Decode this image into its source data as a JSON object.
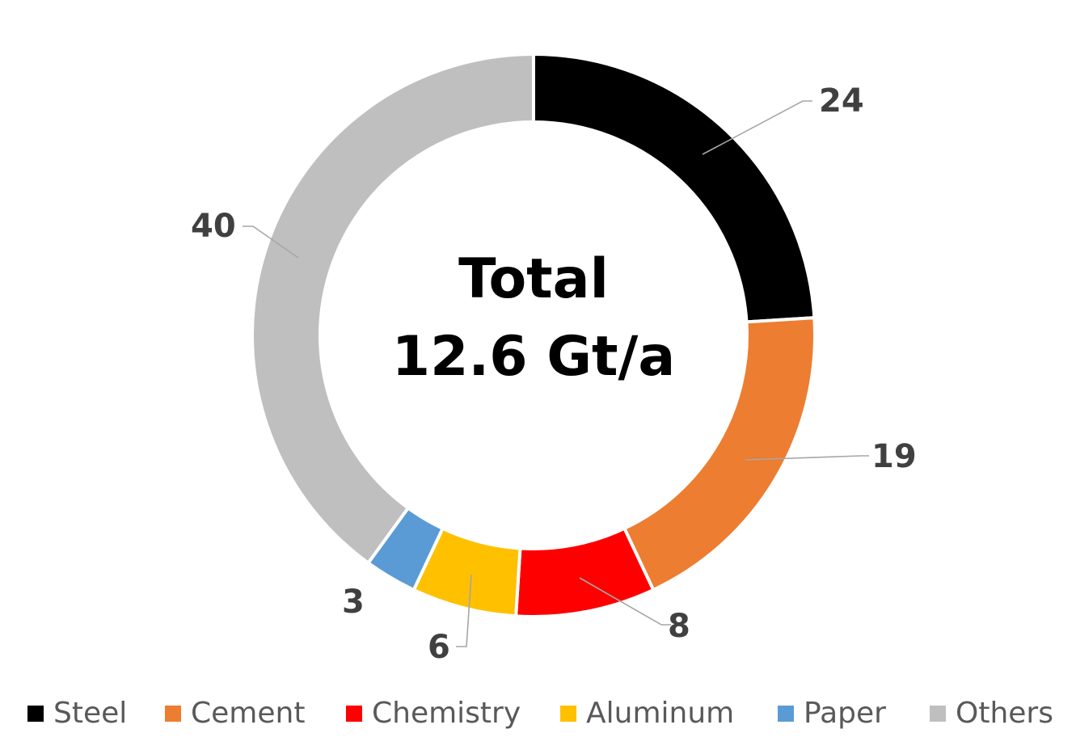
{
  "chart_data": {
    "type": "pie",
    "subtype": "donut",
    "title": "",
    "center_text": [
      "Total",
      "12.6 Gt/a"
    ],
    "categories": [
      "Steel",
      "Cement",
      "Chemistry",
      "Aluminum",
      "Paper",
      "Others"
    ],
    "values": [
      24,
      19,
      8,
      6,
      3,
      40
    ],
    "unit": "%",
    "colors": [
      "#000000",
      "#ED7D31",
      "#FF0000",
      "#FFC000",
      "#5B9BD5",
      "#BFBFBF"
    ],
    "data_labels": [
      "24",
      "19",
      "8",
      "6",
      "3",
      "40"
    ],
    "legend_position": "bottom",
    "start_angle_deg": 0,
    "direction": "clockwise"
  },
  "center": {
    "line1": "Total",
    "line2": "12.6 Gt/a"
  },
  "labels": {
    "steel": "24",
    "cement": "19",
    "chemistry": "8",
    "aluminum": "6",
    "paper": "3",
    "others": "40"
  },
  "legend": [
    {
      "label": "Steel",
      "color": "#000000"
    },
    {
      "label": "Cement",
      "color": "#ED7D31"
    },
    {
      "label": "Chemistry",
      "color": "#FF0000"
    },
    {
      "label": "Aluminum",
      "color": "#FFC000"
    },
    {
      "label": "Paper",
      "color": "#5B9BD5"
    },
    {
      "label": "Others",
      "color": "#BFBFBF"
    }
  ]
}
